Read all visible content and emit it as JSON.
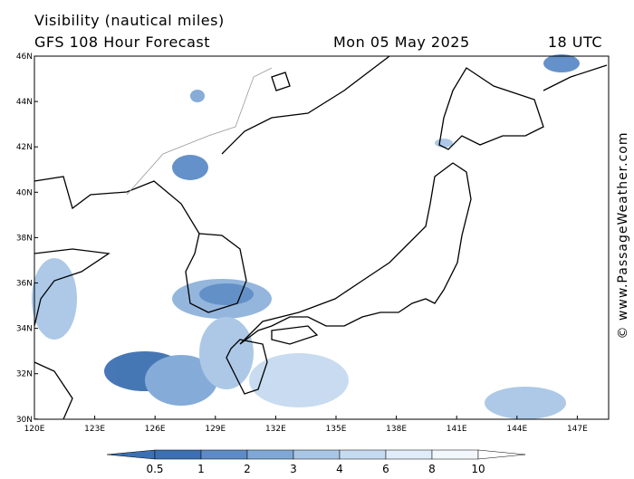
{
  "header": {
    "title": "Visibility (nautical miles)",
    "subtitle": "GFS 108 Hour Forecast",
    "date": "Mon 05 May 2025",
    "time": "18 UTC"
  },
  "axes": {
    "lat_labels": [
      "46N",
      "44N",
      "42N",
      "40N",
      "38N",
      "36N",
      "34N",
      "32N",
      "30N"
    ],
    "lon_labels": [
      "120E",
      "123E",
      "126E",
      "129E",
      "132E",
      "135E",
      "138E",
      "141E",
      "144E",
      "147E"
    ]
  },
  "colorbar": {
    "labels": [
      "0.5",
      "1",
      "2",
      "3",
      "4",
      "6",
      "8",
      "10"
    ]
  },
  "watermark": "© www.PassageWeather.com"
}
